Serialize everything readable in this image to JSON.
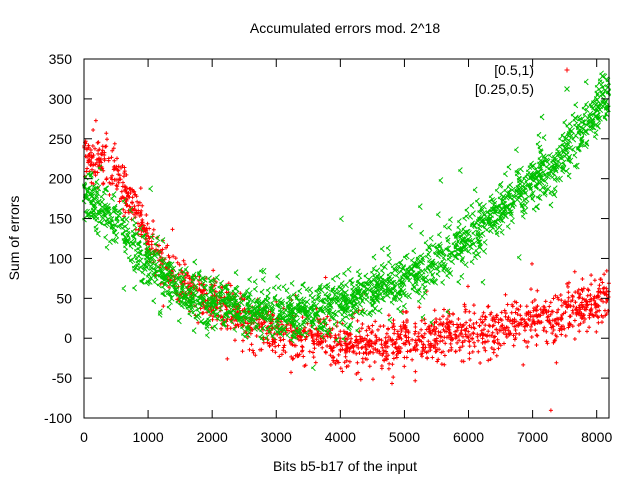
{
  "chart_data": {
    "type": "scatter",
    "title": "Accumulated errors mod. 2^18",
    "xlabel": "Bits b5-b17 of the input",
    "ylabel": "Sum of errors",
    "xlim": [
      0,
      8192
    ],
    "ylim": [
      -100,
      350
    ],
    "xticks": [
      0,
      1000,
      2000,
      3000,
      4000,
      5000,
      6000,
      7000,
      8000
    ],
    "yticks": [
      -100,
      -50,
      0,
      50,
      100,
      150,
      200,
      250,
      300,
      350
    ],
    "xtick_labels": [
      "0",
      "1000",
      "2000",
      "3000",
      "4000",
      "5000",
      "6000",
      "7000",
      "8000"
    ],
    "ytick_labels": [
      "-100",
      "-50",
      "0",
      "50",
      "100",
      "150",
      "200",
      "250",
      "300",
      "350"
    ],
    "grid": false,
    "legend_position": "top-right",
    "series": [
      {
        "name": "[0.5,1)",
        "marker": "plus",
        "color": "#ff0000",
        "trend": [
          {
            "x": 0,
            "y": 230
          },
          {
            "x": 250,
            "y": 222
          },
          {
            "x": 500,
            "y": 205
          },
          {
            "x": 750,
            "y": 165
          },
          {
            "x": 1000,
            "y": 125
          },
          {
            "x": 1250,
            "y": 95
          },
          {
            "x": 1500,
            "y": 70
          },
          {
            "x": 2000,
            "y": 45
          },
          {
            "x": 2500,
            "y": 22
          },
          {
            "x": 3000,
            "y": 8
          },
          {
            "x": 3500,
            "y": 0
          },
          {
            "x": 4000,
            "y": -5
          },
          {
            "x": 4500,
            "y": -8
          },
          {
            "x": 5000,
            "y": -5
          },
          {
            "x": 5500,
            "y": 0
          },
          {
            "x": 6000,
            "y": 8
          },
          {
            "x": 6500,
            "y": 15
          },
          {
            "x": 7000,
            "y": 22
          },
          {
            "x": 7500,
            "y": 30
          },
          {
            "x": 8000,
            "y": 42
          },
          {
            "x": 8192,
            "y": 50
          }
        ],
        "spread": 15
      },
      {
        "name": "[0.25,0.5)",
        "marker": "cross",
        "color": "#00c000",
        "trend": [
          {
            "x": 0,
            "y": 180
          },
          {
            "x": 250,
            "y": 165
          },
          {
            "x": 500,
            "y": 140
          },
          {
            "x": 750,
            "y": 118
          },
          {
            "x": 1000,
            "y": 95
          },
          {
            "x": 1250,
            "y": 75
          },
          {
            "x": 1500,
            "y": 60
          },
          {
            "x": 2000,
            "y": 45
          },
          {
            "x": 2500,
            "y": 35
          },
          {
            "x": 3000,
            "y": 30
          },
          {
            "x": 3500,
            "y": 30
          },
          {
            "x": 4000,
            "y": 42
          },
          {
            "x": 4500,
            "y": 55
          },
          {
            "x": 5000,
            "y": 72
          },
          {
            "x": 5500,
            "y": 95
          },
          {
            "x": 6000,
            "y": 125
          },
          {
            "x": 6500,
            "y": 160
          },
          {
            "x": 7000,
            "y": 195
          },
          {
            "x": 7500,
            "y": 230
          },
          {
            "x": 8000,
            "y": 285
          },
          {
            "x": 8192,
            "y": 305
          }
        ],
        "spread": 16
      }
    ]
  }
}
